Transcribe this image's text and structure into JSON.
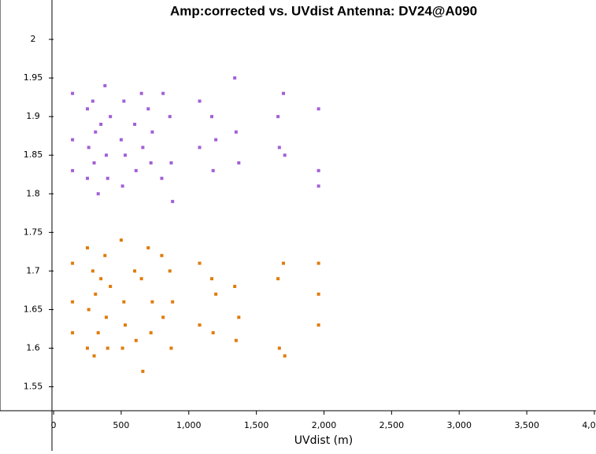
{
  "chart_data": {
    "type": "scatter",
    "title": "Amp:corrected vs. UVdist Antenna: DV24@A090",
    "x_label": "UVdist (m)",
    "xlim": [
      -12,
      4012
    ],
    "ylim": [
      1.519,
      2.051
    ],
    "xticks": [
      0,
      500,
      {
        "value": 1000,
        "label": "1,000"
      },
      {
        "value": 1500,
        "label": "1,500"
      },
      {
        "value": 2000,
        "label": "2,000"
      },
      {
        "value": 2500,
        "label": "2,500"
      },
      {
        "value": 3000,
        "label": "3,000"
      },
      {
        "value": 3500,
        "label": "3,500"
      },
      {
        "value": 4000,
        "label": "4,000"
      }
    ],
    "yticks": [
      1.55,
      1.6,
      1.65,
      1.7,
      1.75,
      1.8,
      1.85,
      1.9,
      1.95,
      2
    ],
    "series": [
      {
        "color": "#a25fd8",
        "x": [
          140,
          140,
          140,
          250,
          250,
          260,
          290,
          300,
          310,
          330,
          350,
          380,
          390,
          400,
          420,
          500,
          510,
          520,
          530,
          600,
          610,
          650,
          660,
          700,
          720,
          730,
          800,
          810,
          860,
          870,
          880,
          1080,
          1080,
          1170,
          1180,
          1200,
          1340,
          1350,
          1370,
          1660,
          1670,
          1700,
          1710,
          1960,
          1960,
          1960
        ],
        "values": [
          1.93,
          1.83,
          1.87,
          1.91,
          1.82,
          1.86,
          1.92,
          1.84,
          1.88,
          1.8,
          1.89,
          1.94,
          1.85,
          1.82,
          1.9,
          1.87,
          1.81,
          1.92,
          1.85,
          1.89,
          1.83,
          1.93,
          1.86,
          1.91,
          1.84,
          1.88,
          1.82,
          1.93,
          1.9,
          1.84,
          1.79,
          1.92,
          1.86,
          1.9,
          1.83,
          1.87,
          1.95,
          1.88,
          1.84,
          1.9,
          1.86,
          1.93,
          1.85,
          1.91,
          1.83,
          1.81
        ]
      },
      {
        "color": "#e07b0a",
        "x": [
          140,
          140,
          140,
          250,
          250,
          260,
          290,
          300,
          310,
          330,
          350,
          380,
          390,
          400,
          420,
          500,
          510,
          520,
          530,
          600,
          610,
          650,
          660,
          700,
          720,
          730,
          800,
          810,
          860,
          870,
          880,
          1080,
          1080,
          1170,
          1180,
          1200,
          1340,
          1350,
          1370,
          1660,
          1670,
          1700,
          1710,
          1960,
          1960,
          1960
        ],
        "values": [
          1.71,
          1.62,
          1.66,
          1.73,
          1.6,
          1.65,
          1.7,
          1.59,
          1.67,
          1.62,
          1.69,
          1.72,
          1.64,
          1.6,
          1.68,
          1.74,
          1.6,
          1.66,
          1.63,
          1.7,
          1.61,
          1.69,
          1.57,
          1.73,
          1.62,
          1.66,
          1.72,
          1.64,
          1.7,
          1.6,
          1.66,
          1.71,
          1.63,
          1.69,
          1.62,
          1.67,
          1.68,
          1.61,
          1.64,
          1.69,
          1.6,
          1.71,
          1.59,
          1.71,
          1.63,
          1.67
        ]
      }
    ]
  }
}
